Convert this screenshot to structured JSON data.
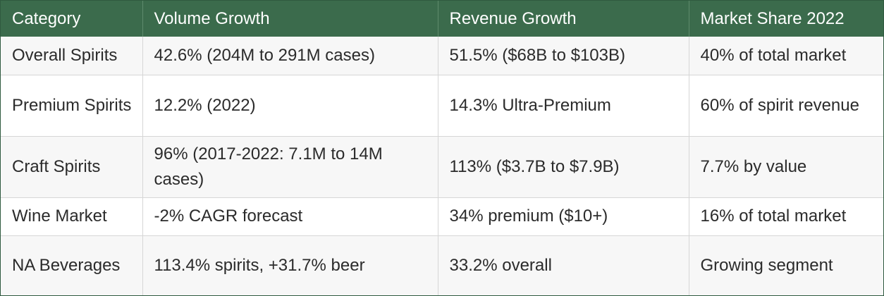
{
  "table": {
    "headers": [
      "Category",
      "Volume Growth",
      "Revenue Growth",
      "Market Share 2022"
    ],
    "rows": [
      [
        "Overall Spirits",
        "42.6% (204M to 291M cases)",
        "51.5% ($68B to $103B)",
        "40% of total market"
      ],
      [
        "Premium Spirits",
        "12.2% (2022)",
        "14.3% Ultra-Premium",
        "60% of spirit revenue"
      ],
      [
        "Craft Spirits",
        "96% (2017-2022: 7.1M to 14M cases)",
        "113% ($3.7B to $7.9B)",
        "7.7% by value"
      ],
      [
        "Wine Market",
        "-2% CAGR forecast",
        "34% premium ($10+)",
        "16% of total market"
      ],
      [
        "NA Beverages",
        "113.4% spirits, +31.7% beer",
        "33.2% overall",
        "Growing segment"
      ]
    ]
  },
  "colors": {
    "header_bg": "#3b6b4c",
    "header_text": "#ffffff",
    "border": "#2f5a3f"
  }
}
